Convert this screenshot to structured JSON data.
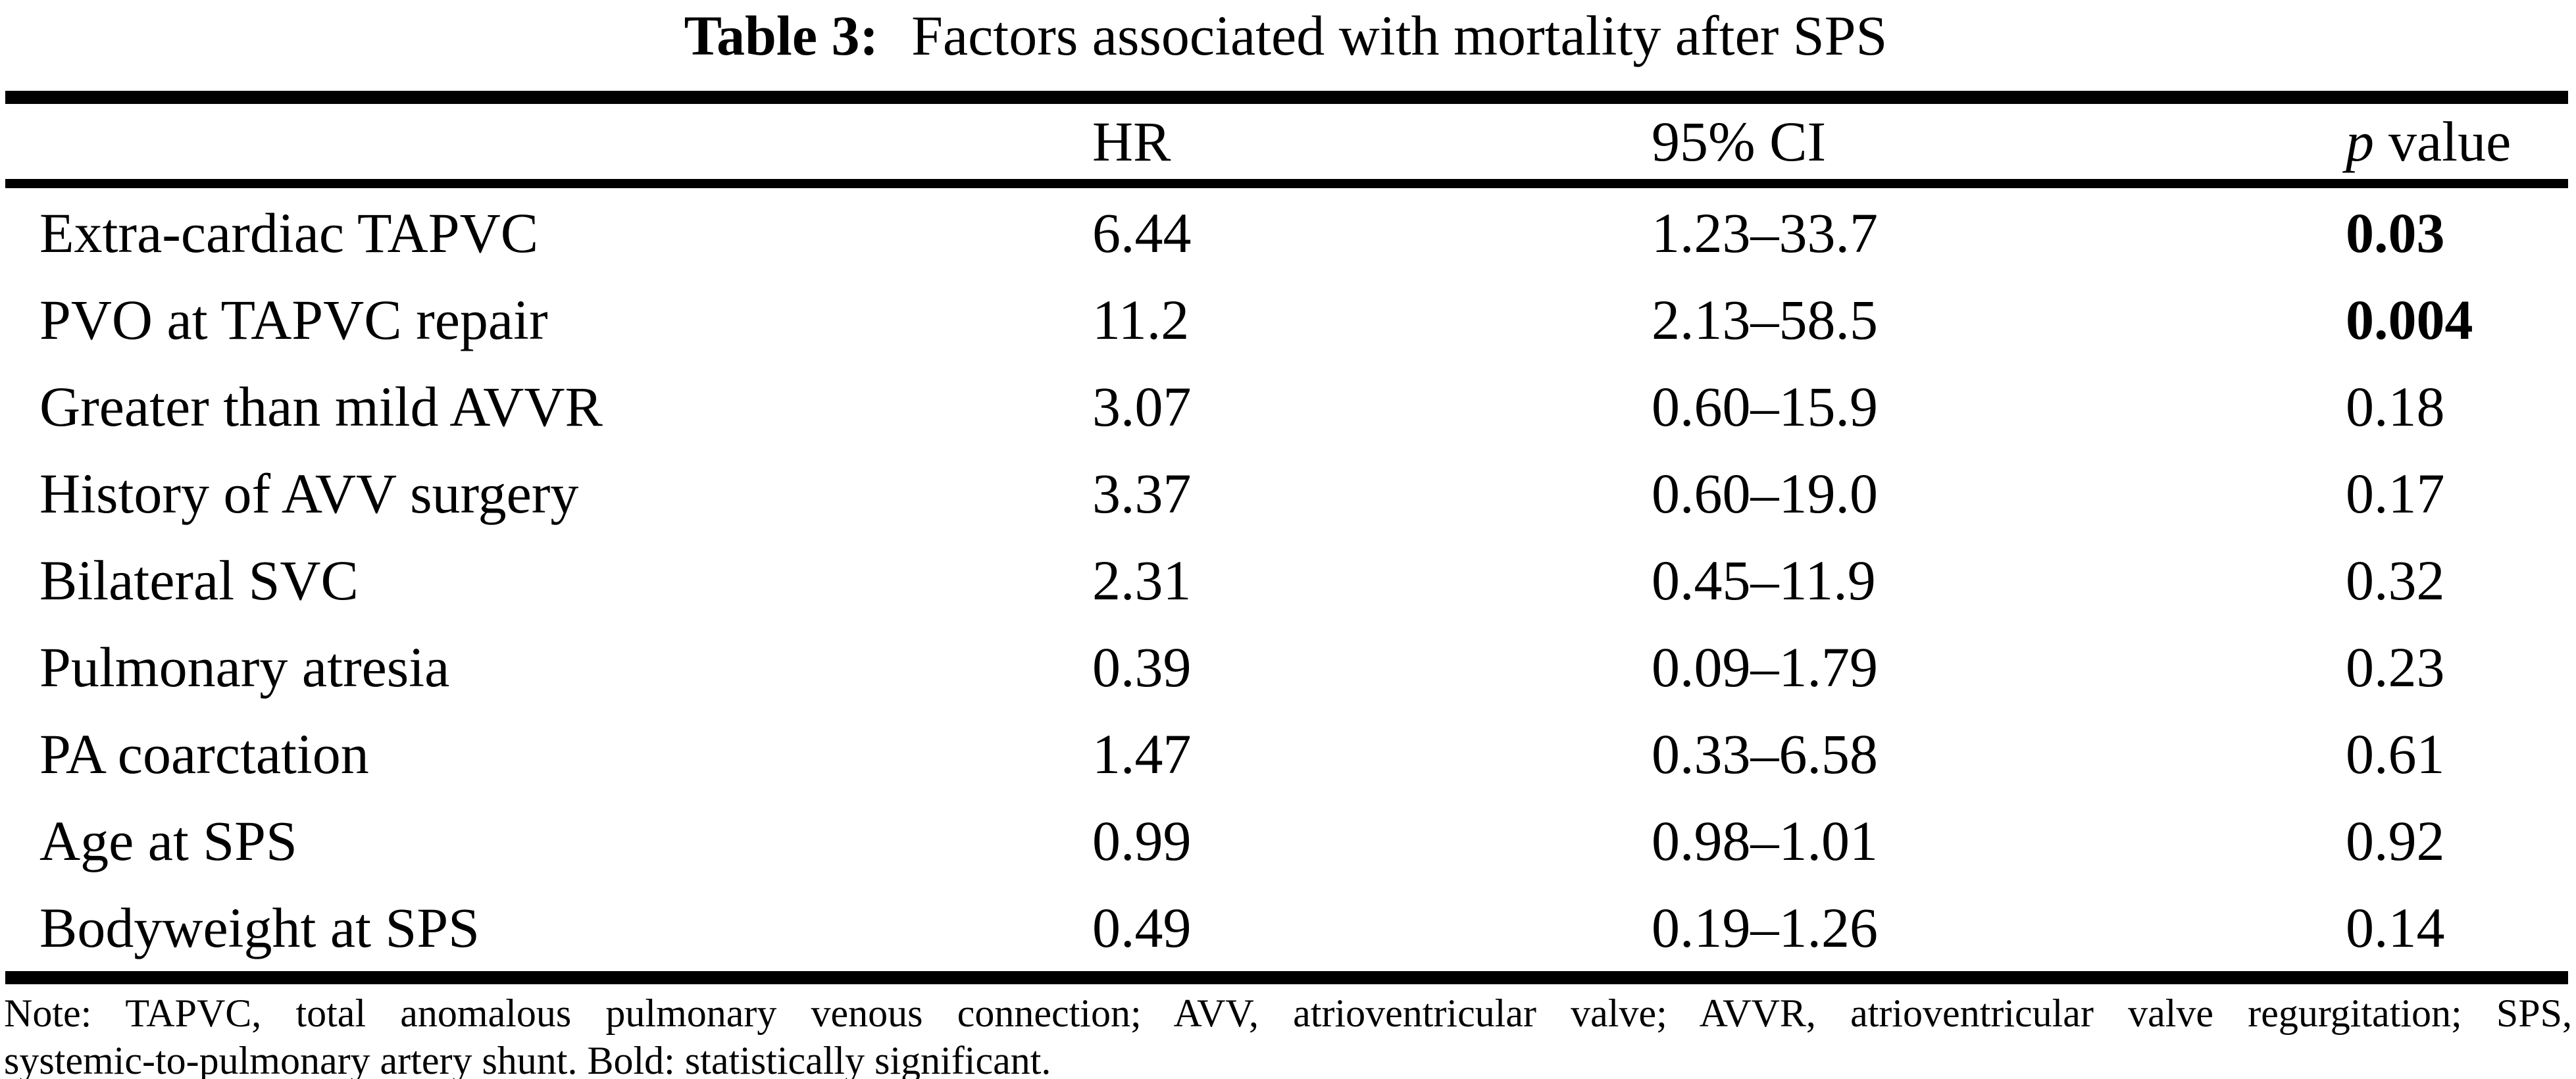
{
  "title": {
    "label": "Table 3:",
    "caption": "Factors associated with mortality after SPS"
  },
  "table": {
    "headers": {
      "factor": "",
      "hr": "HR",
      "ci": "95% CI",
      "p_italic": "p",
      "p_rest": "value"
    },
    "rows": [
      {
        "factor": "Extra-cardiac TAPVC",
        "hr": "6.44",
        "ci": "1.23–33.7",
        "p": "0.03",
        "p_bold": true
      },
      {
        "factor": "PVO at TAPVC repair",
        "hr": "11.2",
        "ci": "2.13–58.5",
        "p": "0.004",
        "p_bold": true
      },
      {
        "factor": "Greater than mild AVVR",
        "hr": "3.07",
        "ci": "0.60–15.9",
        "p": "0.18",
        "p_bold": false
      },
      {
        "factor": "History of AVV surgery",
        "hr": "3.37",
        "ci": "0.60–19.0",
        "p": "0.17",
        "p_bold": false
      },
      {
        "factor": "Bilateral SVC",
        "hr": "2.31",
        "ci": "0.45–11.9",
        "p": "0.32",
        "p_bold": false
      },
      {
        "factor": "Pulmonary atresia",
        "hr": "0.39",
        "ci": "0.09–1.79",
        "p": "0.23",
        "p_bold": false
      },
      {
        "factor": "PA coarctation",
        "hr": "1.47",
        "ci": "0.33–6.58",
        "p": "0.61",
        "p_bold": false
      },
      {
        "factor": "Age at SPS",
        "hr": "0.99",
        "ci": "0.98–1.01",
        "p": "0.92",
        "p_bold": false
      },
      {
        "factor": "Bodyweight at SPS",
        "hr": "0.49",
        "ci": "0.19–1.26",
        "p": "0.14",
        "p_bold": false
      }
    ]
  },
  "note": {
    "lines": [
      "Note: TAPVC, total anomalous pulmonary venous connection; AVV, atrioventricular valve; AVVR, atrioventricular valve regurgitation; SPS,",
      "systemic-to-pulmonary artery shunt. Bold: statistically significant."
    ]
  }
}
